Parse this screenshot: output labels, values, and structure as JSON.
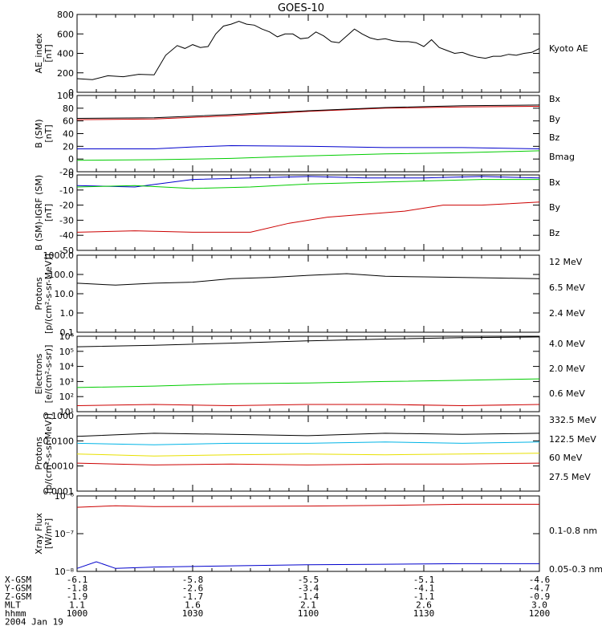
{
  "title": "GOES-10",
  "x_ticks": [
    "1000",
    "1030",
    "1100",
    "1130",
    "1200"
  ],
  "footer": {
    "labels": [
      "X-GSM",
      "Y-GSM",
      "Z-GSM",
      "MLT",
      "hhmm",
      "2004 Jan 19"
    ],
    "rows": [
      [
        "-6.1",
        "-5.8",
        "-5.5",
        "-5.1",
        "-4.6"
      ],
      [
        "-1.8",
        "-2.6",
        "-3.4",
        "-4.1",
        "-4.7"
      ],
      [
        "-1.9",
        "-1.7",
        "-1.4",
        "-1.1",
        "-0.9"
      ],
      [
        "1.1",
        "1.6",
        "2.1",
        "2.6",
        "3.0"
      ],
      [
        "1000",
        "1030",
        "1100",
        "1130",
        "1200"
      ]
    ]
  },
  "chart_data": [
    {
      "type": "line",
      "ylabel": [
        "AE_index",
        "[nT]"
      ],
      "ylim": [
        0,
        800
      ],
      "scale": "linear",
      "yticks": [
        0,
        200,
        400,
        600,
        800
      ],
      "yticklabels": [
        "0",
        "200",
        "400",
        "600",
        "800"
      ],
      "series": [
        {
          "name": "Kyoto AE",
          "color": "#000000",
          "x": [
            0,
            4,
            8,
            12,
            16,
            20,
            23,
            26,
            28,
            30,
            32,
            34,
            36,
            38,
            40,
            42,
            44,
            46,
            48,
            50,
            52,
            54,
            56,
            58,
            60,
            62,
            64,
            66,
            68,
            70,
            72,
            74,
            76,
            78,
            80,
            82,
            84,
            86,
            88,
            90,
            92,
            94,
            96,
            98,
            100,
            102,
            104,
            106,
            108,
            110,
            112,
            114,
            116,
            118,
            120
          ],
          "y": [
            140,
            130,
            170,
            160,
            185,
            180,
            380,
            480,
            450,
            490,
            460,
            470,
            600,
            680,
            700,
            730,
            700,
            690,
            650,
            620,
            570,
            600,
            600,
            550,
            560,
            620,
            580,
            520,
            510,
            580,
            650,
            600,
            560,
            540,
            550,
            530,
            520,
            520,
            510,
            470,
            540,
            460,
            430,
            400,
            410,
            380,
            360,
            350,
            370,
            370,
            390,
            380,
            400,
            410,
            450
          ]
        }
      ]
    },
    {
      "type": "line",
      "ylabel": [
        "B (SM)",
        "[nT]"
      ],
      "ylim": [
        -20,
        100
      ],
      "scale": "linear",
      "yticks": [
        -20,
        0,
        20,
        40,
        60,
        80,
        100
      ],
      "yticklabels": [
        "-20",
        "0",
        "20",
        "40",
        "60",
        "80",
        "100"
      ],
      "series": [
        {
          "name": "Bx",
          "color": "#0000cc",
          "x": [
            0,
            20,
            30,
            40,
            60,
            80,
            100,
            120
          ],
          "y": [
            16,
            16,
            19,
            21,
            20,
            18,
            18,
            16
          ]
        },
        {
          "name": "By",
          "color": "#00cc00",
          "x": [
            0,
            20,
            40,
            60,
            80,
            100,
            120
          ],
          "y": [
            -2,
            -1,
            1,
            5,
            8,
            10,
            13
          ]
        },
        {
          "name": "Bz",
          "color": "#cc0000",
          "x": [
            0,
            20,
            40,
            60,
            80,
            100,
            120
          ],
          "y": [
            62,
            63,
            68,
            75,
            80,
            82,
            83
          ]
        },
        {
          "name": "Bmag",
          "color": "#000000",
          "x": [
            0,
            20,
            40,
            60,
            80,
            100,
            120
          ],
          "y": [
            64,
            65,
            70,
            76,
            81,
            84,
            85
          ]
        }
      ]
    },
    {
      "type": "line",
      "ylabel": [
        "B (SM)-IGRF (SM)",
        "[nT]"
      ],
      "ylim": [
        -50,
        0
      ],
      "scale": "linear",
      "yticks": [
        -50,
        -40,
        -30,
        -20,
        -10,
        0
      ],
      "yticklabels": [
        "-50",
        "-40",
        "-30",
        "-20",
        "-10",
        "0"
      ],
      "series": [
        {
          "name": "Bx",
          "color": "#0000cc",
          "x": [
            0,
            15,
            30,
            45,
            60,
            75,
            90,
            105,
            120
          ],
          "y": [
            -7,
            -8,
            -3,
            -2,
            -1,
            -2,
            -2,
            -1,
            -2
          ]
        },
        {
          "name": "By",
          "color": "#00cc00",
          "x": [
            0,
            15,
            30,
            45,
            60,
            75,
            90,
            105,
            120
          ],
          "y": [
            -8,
            -7,
            -9,
            -8,
            -6,
            -5,
            -4,
            -3,
            -3
          ]
        },
        {
          "name": "Bz",
          "color": "#cc0000",
          "x": [
            0,
            15,
            30,
            45,
            55,
            65,
            75,
            85,
            95,
            105,
            120
          ],
          "y": [
            -38,
            -37,
            -38,
            -38,
            -32,
            -28,
            -26,
            -24,
            -20,
            -20,
            -18
          ]
        }
      ]
    },
    {
      "type": "line",
      "ylabel": [
        "Protons",
        "[p/(cm²-s-sr-MeV)]"
      ],
      "ylim": [
        0.1,
        1000
      ],
      "scale": "log",
      "yticks": [
        0.1,
        1,
        10,
        100,
        1000
      ],
      "yticklabels": [
        "0.1",
        "1.0",
        "10.0",
        "100.0",
        "1000.0"
      ],
      "series": [
        {
          "name": "12 MeV",
          "color": "#cc0000",
          "x": [],
          "y": []
        },
        {
          "name": "6.5 MeV",
          "color": "#00cc00",
          "x": [],
          "y": []
        },
        {
          "name": "2.4 MeV",
          "color": "#000000",
          "x": [
            0,
            10,
            20,
            30,
            40,
            50,
            60,
            70,
            80,
            90,
            100,
            110,
            120
          ],
          "y": [
            35,
            28,
            35,
            40,
            60,
            70,
            90,
            110,
            80,
            75,
            70,
            65,
            60
          ]
        }
      ]
    },
    {
      "type": "line",
      "ylabel": [
        "Electrons",
        "[e/(cm²-s-sr)]"
      ],
      "ylim": [
        10,
        1000000
      ],
      "scale": "log",
      "yticks": [
        10,
        100,
        1000,
        10000,
        100000,
        1000000
      ],
      "yticklabels": [
        "10¹",
        "10²",
        "10³",
        "10⁴",
        "10⁵",
        "10⁶"
      ],
      "series": [
        {
          "name": "4.0 MeV",
          "color": "#cc0000",
          "x": [
            0,
            20,
            40,
            60,
            80,
            100,
            120
          ],
          "y": [
            25,
            30,
            25,
            30,
            30,
            25,
            30
          ]
        },
        {
          "name": "2.0 MeV",
          "color": "#00cc00",
          "x": [
            0,
            20,
            40,
            60,
            80,
            100,
            120
          ],
          "y": [
            400,
            500,
            700,
            800,
            1000,
            1200,
            1500
          ]
        },
        {
          "name": "0.6 MeV",
          "color": "#000000",
          "x": [
            0,
            20,
            40,
            60,
            80,
            100,
            120
          ],
          "y": [
            200000,
            250000,
            350000,
            500000,
            650000,
            800000,
            900000
          ]
        }
      ]
    },
    {
      "type": "line",
      "ylabel": [
        "Protons",
        "[p/(cm²-s-sr-MeV)]"
      ],
      "ylim": [
        0.0001,
        0.1
      ],
      "scale": "log",
      "yticks": [
        0.0001,
        0.001,
        0.01,
        0.1
      ],
      "yticklabels": [
        "0.0001",
        "0.0010",
        "0.0100",
        "0.1000"
      ],
      "series": [
        {
          "name": "332.5 MeV",
          "color": "#cc0000",
          "x": [
            0,
            20,
            40,
            60,
            80,
            100,
            120
          ],
          "y": [
            0.0013,
            0.0011,
            0.0012,
            0.0011,
            0.0012,
            0.0012,
            0.0013
          ]
        },
        {
          "name": "122.5 MeV",
          "color": "#e8e000",
          "x": [
            0,
            20,
            40,
            60,
            80,
            100,
            120
          ],
          "y": [
            0.003,
            0.0025,
            0.0028,
            0.003,
            0.0028,
            0.003,
            0.0032
          ]
        },
        {
          "name": "60 MeV",
          "color": "#00b4e6",
          "x": [
            0,
            20,
            40,
            60,
            80,
            100,
            120
          ],
          "y": [
            0.008,
            0.007,
            0.008,
            0.008,
            0.009,
            0.008,
            0.009
          ]
        },
        {
          "name": "27.5 MeV",
          "color": "#000000",
          "x": [
            0,
            20,
            40,
            60,
            80,
            100,
            120
          ],
          "y": [
            0.015,
            0.02,
            0.018,
            0.016,
            0.02,
            0.018,
            0.02
          ]
        }
      ]
    },
    {
      "type": "line",
      "ylabel": [
        "Xray Flux",
        "[W/m²]"
      ],
      "ylim": [
        1e-08,
        1e-06
      ],
      "scale": "log",
      "yticks": [
        1e-08,
        1e-07,
        1e-06
      ],
      "yticklabels": [
        "10⁻⁸",
        "10⁻⁷",
        "10⁻⁶"
      ],
      "series": [
        {
          "name": "0.1-0.8 nm",
          "color": "#cc0000",
          "x": [
            0,
            10,
            20,
            40,
            60,
            80,
            100,
            120
          ],
          "y": [
            5e-07,
            5.5e-07,
            5.2e-07,
            5.3e-07,
            5.4e-07,
            5.6e-07,
            6e-07,
            6e-07
          ]
        },
        {
          "name": "0.05-0.3 nm",
          "color": "#0000cc",
          "x": [
            0,
            5,
            10,
            20,
            40,
            60,
            80,
            100,
            120
          ],
          "y": [
            1.2e-08,
            1.8e-08,
            1.2e-08,
            1.3e-08,
            1.4e-08,
            1.5e-08,
            1.55e-08,
            1.6e-08,
            1.6e-08
          ]
        }
      ]
    }
  ]
}
